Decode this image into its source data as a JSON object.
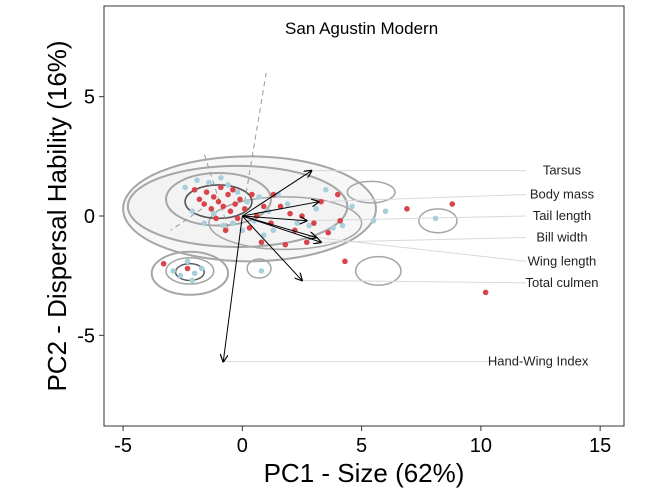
{
  "chart_data": {
    "type": "scatter",
    "title": "San Agustin Modern",
    "xlabel": "PC1 - Size (62%)",
    "ylabel": "PC2 - Dispersal Hability (16%)",
    "xlim": [
      -5.8,
      16.0
    ],
    "ylim": [
      -8.8,
      8.8
    ],
    "xticks": [
      -5,
      0,
      5,
      10,
      15
    ],
    "yticks": [
      -5,
      0,
      5
    ],
    "grid": false,
    "colors": {
      "red_points": "#d9434b",
      "blue_points": "#a8cfdc",
      "density_contours": "#a6a6a6",
      "density_core": "#555555",
      "arrows": "#000000",
      "label_guides": "#d8d8d8"
    },
    "series": [
      {
        "color": "red",
        "points": [
          [
            -3.3,
            -2.0
          ],
          [
            -2.3,
            -2.2
          ],
          [
            -2.0,
            1.1
          ],
          [
            -1.8,
            0.7
          ],
          [
            -1.6,
            0.5
          ],
          [
            -1.5,
            1.0
          ],
          [
            -1.3,
            0.3
          ],
          [
            -1.2,
            0.8
          ],
          [
            -1.1,
            -0.1
          ],
          [
            -1.0,
            0.6
          ],
          [
            -0.9,
            1.2
          ],
          [
            -0.8,
            0.4
          ],
          [
            -0.7,
            -0.6
          ],
          [
            -0.6,
            0.9
          ],
          [
            -0.5,
            0.2
          ],
          [
            -0.4,
            1.1
          ],
          [
            -0.3,
            0.5
          ],
          [
            -0.2,
            -0.1
          ],
          [
            -0.1,
            0.7
          ],
          [
            0.1,
            0.3
          ],
          [
            0.3,
            -0.5
          ],
          [
            0.4,
            0.9
          ],
          [
            0.6,
            0.0
          ],
          [
            0.8,
            -1.1
          ],
          [
            0.9,
            0.4
          ],
          [
            1.2,
            -0.3
          ],
          [
            1.3,
            0.9
          ],
          [
            1.6,
            0.4
          ],
          [
            1.8,
            -1.2
          ],
          [
            2.0,
            0.1
          ],
          [
            2.2,
            -0.6
          ],
          [
            2.5,
            0.0
          ],
          [
            2.7,
            -1.1
          ],
          [
            3.0,
            -0.3
          ],
          [
            3.3,
            0.6
          ],
          [
            3.6,
            -0.7
          ],
          [
            4.0,
            0.9
          ],
          [
            4.1,
            -0.2
          ],
          [
            4.3,
            -1.9
          ],
          [
            6.9,
            0.3
          ],
          [
            8.8,
            0.5
          ],
          [
            10.2,
            -3.2
          ]
        ]
      },
      {
        "color": "blue",
        "points": [
          [
            -2.9,
            -2.3
          ],
          [
            -2.6,
            -2.5
          ],
          [
            -2.3,
            -1.9
          ],
          [
            -2.0,
            -2.4
          ],
          [
            -1.7,
            -2.2
          ],
          [
            -2.1,
            -2.7
          ],
          [
            -2.4,
            1.2
          ],
          [
            -2.1,
            0.2
          ],
          [
            -1.9,
            1.5
          ],
          [
            -1.6,
            -0.3
          ],
          [
            -1.4,
            1.4
          ],
          [
            -1.2,
            0.1
          ],
          [
            -0.9,
            1.6
          ],
          [
            -0.8,
            -0.4
          ],
          [
            -0.6,
            1.3
          ],
          [
            -0.4,
            -0.3
          ],
          [
            -0.2,
            1.0
          ],
          [
            0.0,
            -0.6
          ],
          [
            0.2,
            0.6
          ],
          [
            0.5,
            -0.2
          ],
          [
            0.7,
            0.8
          ],
          [
            0.9,
            -0.8
          ],
          [
            1.1,
            0.2
          ],
          [
            1.3,
            -0.6
          ],
          [
            1.5,
            0.9
          ],
          [
            1.9,
            0.5
          ],
          [
            2.3,
            -0.3
          ],
          [
            2.8,
            -0.4
          ],
          [
            3.1,
            0.3
          ],
          [
            3.5,
            1.1
          ],
          [
            3.8,
            -0.5
          ],
          [
            4.2,
            -0.4
          ],
          [
            4.6,
            0.4
          ],
          [
            0.8,
            -2.3
          ],
          [
            5.5,
            -0.2
          ],
          [
            6.0,
            0.2
          ],
          [
            8.1,
            -0.1
          ]
        ]
      }
    ],
    "loadings": [
      {
        "label": "Tarsus",
        "x": 2.9,
        "y": 1.9,
        "label_x": 13.4,
        "label_y": 1.9
      },
      {
        "label": "Body mass",
        "x": 3.2,
        "y": 0.6,
        "label_x": 13.4,
        "label_y": 0.9
      },
      {
        "label": "Tail length",
        "x": 2.7,
        "y": -0.2,
        "label_x": 13.4,
        "label_y": 0.0
      },
      {
        "label": "Bill width",
        "x": 3.3,
        "y": -1.1,
        "label_x": 13.4,
        "label_y": -0.9
      },
      {
        "label": "Wing length",
        "x": 3.1,
        "y": -0.9,
        "label_x": 13.4,
        "label_y": -1.9
      },
      {
        "label": "Total culmen",
        "x": 2.5,
        "y": -2.7,
        "label_x": 13.4,
        "label_y": -2.8
      },
      {
        "label": "Hand-Wing Index",
        "x": -0.8,
        "y": -6.1,
        "label_x": 12.4,
        "label_y": -6.1
      }
    ]
  }
}
